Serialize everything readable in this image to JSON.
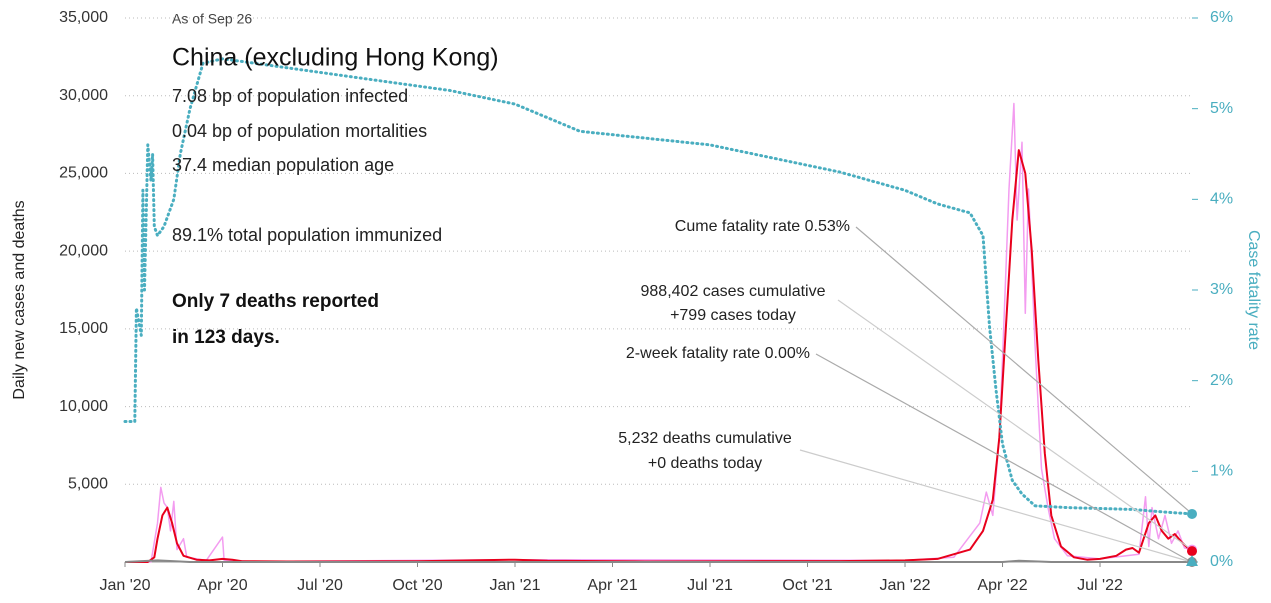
{
  "chart_data": {
    "type": "line",
    "title": "China (excluding Hong Kong)",
    "as_of": "As of Sep 26",
    "stats": [
      "7.08 bp of population infected",
      "0.04 bp of population mortalities",
      "37.4 median population age",
      "89.1% total population immunized"
    ],
    "note": [
      "Only 7 deaths reported",
      "in 123 days."
    ],
    "callouts": [
      {
        "lines": [
          "Cume fatality rate 0.53%"
        ]
      },
      {
        "lines": [
          "988,402 cases cumulative",
          "+799 cases today"
        ]
      },
      {
        "lines": [
          "2-week fatality rate 0.00%"
        ]
      },
      {
        "lines": [
          "5,232 deaths cumulative",
          "+0 deaths today"
        ]
      }
    ],
    "y_label": "Daily new cases and deaths",
    "y2_label": "Case fatality rate",
    "xlim": [
      0,
      32.83
    ],
    "xticks": [
      {
        "value": 0,
        "label": "Jan '20"
      },
      {
        "value": 3,
        "label": "Apr '20"
      },
      {
        "value": 6,
        "label": "Jul '20"
      },
      {
        "value": 9,
        "label": "Oct '20"
      },
      {
        "value": 12,
        "label": "Jan '21"
      },
      {
        "value": 15,
        "label": "Apr '21"
      },
      {
        "value": 18,
        "label": "Jul '21"
      },
      {
        "value": 21,
        "label": "Oct '21"
      },
      {
        "value": 24,
        "label": "Jan '22"
      },
      {
        "value": 27,
        "label": "Apr '22"
      },
      {
        "value": 30,
        "label": "Jul '22"
      }
    ],
    "ylim": [
      0,
      35000
    ],
    "yticks": [
      {
        "value": 5000,
        "label": "5,000"
      },
      {
        "value": 10000,
        "label": "10,000"
      },
      {
        "value": 15000,
        "label": "15,000"
      },
      {
        "value": 20000,
        "label": "20,000"
      },
      {
        "value": 25000,
        "label": "25,000"
      },
      {
        "value": 30000,
        "label": "30,000"
      },
      {
        "value": 35000,
        "label": "35,000"
      }
    ],
    "y2lim": [
      0,
      6
    ],
    "y2ticks": [
      {
        "value": 0,
        "label": "0%"
      },
      {
        "value": 1,
        "label": "1%"
      },
      {
        "value": 2,
        "label": "2%"
      },
      {
        "value": 3,
        "label": "3%"
      },
      {
        "value": 4,
        "label": "4%"
      },
      {
        "value": 5,
        "label": "5%"
      },
      {
        "value": 6,
        "label": "6%"
      }
    ],
    "grid": true,
    "series": [
      {
        "color": "#f39cf0",
        "width": 1.5,
        "x": [
          0,
          0.8,
          1.0,
          1.1,
          1.2,
          1.3,
          1.4,
          1.5,
          1.6,
          1.8,
          1.9,
          2.5,
          3.0,
          3.05,
          4,
          12,
          24,
          25.5,
          26.3,
          26.5,
          26.7,
          26.9,
          27.0,
          27.2,
          27.35,
          27.45,
          27.6,
          27.7,
          27.8,
          28.0,
          28.2,
          28.4,
          28.6,
          29.0,
          30,
          31.2,
          31.4,
          31.5,
          31.6,
          31.8,
          32.0,
          32.2,
          32.4,
          32.6,
          32.83
        ],
        "values": [
          0,
          0,
          2500,
          4800,
          3800,
          3500,
          2000,
          3900,
          800,
          1500,
          300,
          100,
          1600,
          100,
          30,
          150,
          100,
          300,
          2500,
          4500,
          3000,
          8000,
          13000,
          24000,
          29500,
          22000,
          27000,
          16000,
          24000,
          14000,
          6000,
          3500,
          1500,
          400,
          200,
          500,
          4200,
          1000,
          3500,
          1500,
          3000,
          1200,
          2000,
          900,
          799
        ]
      },
      {
        "color": "#e8001c",
        "width": 2,
        "x": [
          0,
          0.7,
          0.9,
          1.0,
          1.15,
          1.3,
          1.45,
          1.6,
          1.8,
          2.2,
          2.6,
          3.0,
          3.3,
          3.6,
          5,
          7,
          9,
          12,
          13,
          16,
          19,
          22,
          24,
          25,
          26,
          26.4,
          26.7,
          26.9,
          27.1,
          27.3,
          27.5,
          27.7,
          27.9,
          28.1,
          28.3,
          28.5,
          28.8,
          29.2,
          29.6,
          30,
          30.5,
          30.8,
          31.0,
          31.2,
          31.5,
          31.7,
          31.9,
          32.1,
          32.3,
          32.5,
          32.7,
          32.83
        ],
        "values": [
          0,
          0,
          300,
          1500,
          3000,
          3500,
          2500,
          1200,
          400,
          150,
          100,
          200,
          150,
          50,
          30,
          40,
          50,
          150,
          80,
          30,
          50,
          60,
          100,
          200,
          800,
          2000,
          4000,
          8000,
          15000,
          22000,
          26500,
          25000,
          20000,
          13000,
          7000,
          3000,
          1000,
          300,
          150,
          200,
          400,
          800,
          900,
          600,
          2500,
          3000,
          2000,
          1500,
          1800,
          1300,
          900,
          700
        ]
      },
      {
        "color": "#888888",
        "width": 2,
        "x": [
          0,
          1,
          2,
          27,
          27.5,
          28.5,
          32.83
        ],
        "values": [
          0,
          100,
          0,
          0,
          80,
          0,
          0
        ]
      },
      {
        "color": "#4aaec0",
        "width": 3,
        "axis": "y2",
        "dotted": true,
        "x": [
          0,
          0.3,
          0.35,
          0.5,
          0.55,
          0.6,
          0.7,
          0.8,
          0.85,
          0.9,
          1.0,
          1.2,
          1.4,
          1.5,
          1.7,
          2.0,
          2.4,
          3,
          4,
          6,
          8,
          10,
          12,
          14,
          18,
          20,
          22,
          24,
          25,
          26,
          26.4,
          26.6,
          26.8,
          27,
          27.3,
          27.6,
          28,
          29,
          31,
          32,
          32.83
        ],
        "values": [
          1.55,
          1.55,
          2.8,
          2.5,
          4.1,
          3.0,
          4.6,
          4.2,
          4.5,
          3.7,
          3.6,
          3.7,
          3.9,
          4.0,
          4.5,
          5.0,
          5.5,
          5.55,
          5.5,
          5.4,
          5.3,
          5.2,
          5.05,
          4.75,
          4.6,
          4.45,
          4.3,
          4.1,
          3.95,
          3.85,
          3.6,
          2.6,
          1.9,
          1.3,
          0.9,
          0.75,
          0.62,
          0.6,
          0.58,
          0.55,
          0.53
        ]
      }
    ]
  }
}
